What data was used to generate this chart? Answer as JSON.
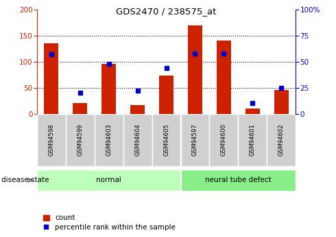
{
  "title": "GDS2470 / 238575_at",
  "samples": [
    "GSM94598",
    "GSM94599",
    "GSM94603",
    "GSM94604",
    "GSM94605",
    "GSM94597",
    "GSM94600",
    "GSM94601",
    "GSM94602"
  ],
  "counts": [
    135,
    20,
    95,
    17,
    73,
    170,
    140,
    10,
    45
  ],
  "percentiles": [
    57,
    20,
    48,
    22,
    44,
    58,
    58,
    10,
    25
  ],
  "groups": [
    {
      "label": "normal",
      "start": 0,
      "end": 5,
      "color": "#bbffbb"
    },
    {
      "label": "neural tube defect",
      "start": 5,
      "end": 9,
      "color": "#88ee88"
    }
  ],
  "left_ylim": [
    0,
    200
  ],
  "right_ylim": [
    0,
    100
  ],
  "left_yticks": [
    0,
    50,
    100,
    150,
    200
  ],
  "right_yticks": [
    0,
    25,
    50,
    75,
    100
  ],
  "right_yticklabels": [
    "0",
    "25",
    "50",
    "75",
    "100%"
  ],
  "bar_color": "#cc2200",
  "marker_color": "#0000cc",
  "disease_state_label": "disease state",
  "legend_count": "count",
  "legend_pct": "percentile rank within the sample",
  "bar_width": 0.5
}
